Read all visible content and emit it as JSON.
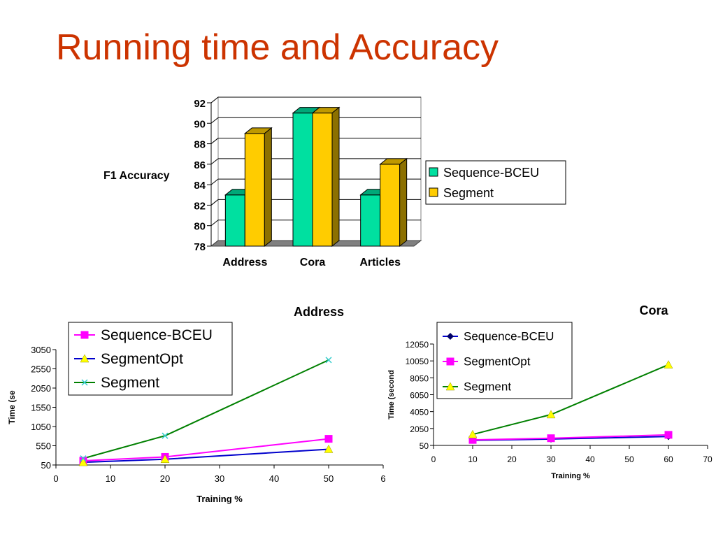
{
  "slide": {
    "title": "Running time and Accuracy"
  },
  "colors": {
    "title": "#cc3300",
    "bar_sequence": "#00e0a0",
    "bar_segment": "#ffcc00",
    "line_pink": "#ff00ff",
    "line_blue": "#0000cc",
    "line_green": "#008000",
    "marker_cyan": "#33cccc",
    "marker_yellow": "#ffff00",
    "marker_navy": "#000066"
  },
  "chart_data": [
    {
      "type": "bar",
      "title": "",
      "ylabel": "F1 Accuracy",
      "xlabel": "",
      "categories": [
        "Address",
        "Cora",
        "Articles"
      ],
      "ylim": [
        78,
        92
      ],
      "yticks": [
        "92",
        "90",
        "88",
        "86",
        "84",
        "82",
        "80",
        "78"
      ],
      "series": [
        {
          "name": "Sequence-BCEU",
          "values": [
            83,
            91,
            83
          ]
        },
        {
          "name": "Segment",
          "values": [
            89,
            91,
            86
          ]
        }
      ],
      "legend": "right",
      "grid": true
    },
    {
      "type": "line",
      "title": "Address",
      "xlabel": "Training %",
      "ylabel": "Time (se",
      "xlim": [
        0,
        60
      ],
      "ylim": [
        50,
        3050
      ],
      "xticks": [
        "0",
        "10",
        "20",
        "30",
        "40",
        "50",
        "6"
      ],
      "yticks": [
        "3050",
        "2550",
        "2050",
        "1550",
        "1050",
        "550",
        "50"
      ],
      "x": [
        5,
        20,
        50
      ],
      "series": [
        {
          "name": "Sequence-BCEU",
          "values": [
            160,
            260,
            730
          ]
        },
        {
          "name": "SegmentOpt",
          "values": [
            120,
            200,
            460
          ]
        },
        {
          "name": "Segment",
          "values": [
            220,
            810,
            2780
          ]
        }
      ],
      "legend": "top"
    },
    {
      "type": "line",
      "title": "Cora",
      "xlabel": "Training %",
      "ylabel": "Time (second",
      "xlim": [
        0,
        70
      ],
      "ylim": [
        50,
        12050
      ],
      "xticks": [
        "0",
        "10",
        "20",
        "30",
        "40",
        "50",
        "60",
        "70"
      ],
      "yticks": [
        "12050",
        "10050",
        "8050",
        "6050",
        "4050",
        "2050",
        "50"
      ],
      "x": [
        10,
        30,
        60
      ],
      "series": [
        {
          "name": "Sequence-BCEU",
          "values": [
            650,
            800,
            1100
          ]
        },
        {
          "name": "SegmentOpt",
          "values": [
            700,
            900,
            1300
          ]
        },
        {
          "name": "Segment",
          "values": [
            1350,
            3700,
            9600
          ]
        }
      ],
      "legend": "top"
    }
  ]
}
